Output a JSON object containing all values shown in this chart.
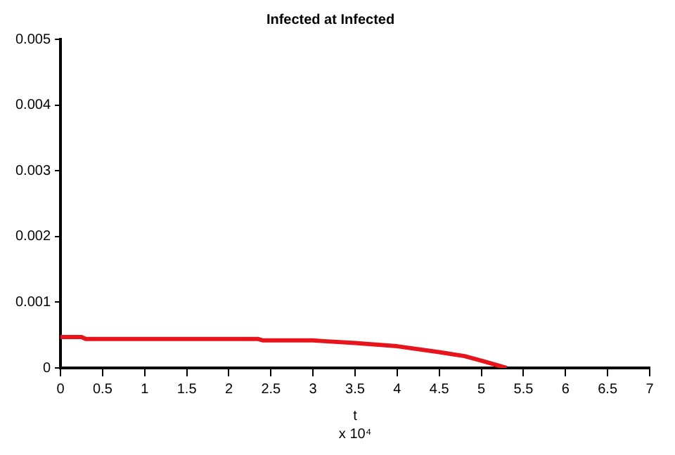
{
  "chart_data": {
    "type": "line",
    "title": "Infected at Infected",
    "xlabel": "t",
    "annotations": [
      "x 10⁴"
    ],
    "series": [
      {
        "color": "#e8141c",
        "x": [
          0,
          0.25,
          0.3,
          1,
          2,
          2.35,
          2.4,
          3,
          3.1,
          3.5,
          4,
          4.5,
          4.8,
          5,
          5.3
        ],
        "values": [
          0.00047,
          0.00047,
          0.00044,
          0.00044,
          0.00044,
          0.00044,
          0.00042,
          0.00042,
          0.00041,
          0.00038,
          0.00033,
          0.00024,
          0.00018,
          0.00011,
          0
        ]
      }
    ],
    "xlim": [
      0,
      7
    ],
    "xticks": [
      0,
      0.5,
      1,
      1.5,
      2,
      2.5,
      3,
      3.5,
      4,
      4.5,
      5,
      5.5,
      6,
      6.5,
      7
    ],
    "ylim": [
      0,
      0.005
    ],
    "yticks": [
      0,
      0.001,
      0.002,
      0.003,
      0.004,
      0.005
    ],
    "grid": false,
    "legend": false,
    "marker": "none",
    "line_style": "solid"
  }
}
